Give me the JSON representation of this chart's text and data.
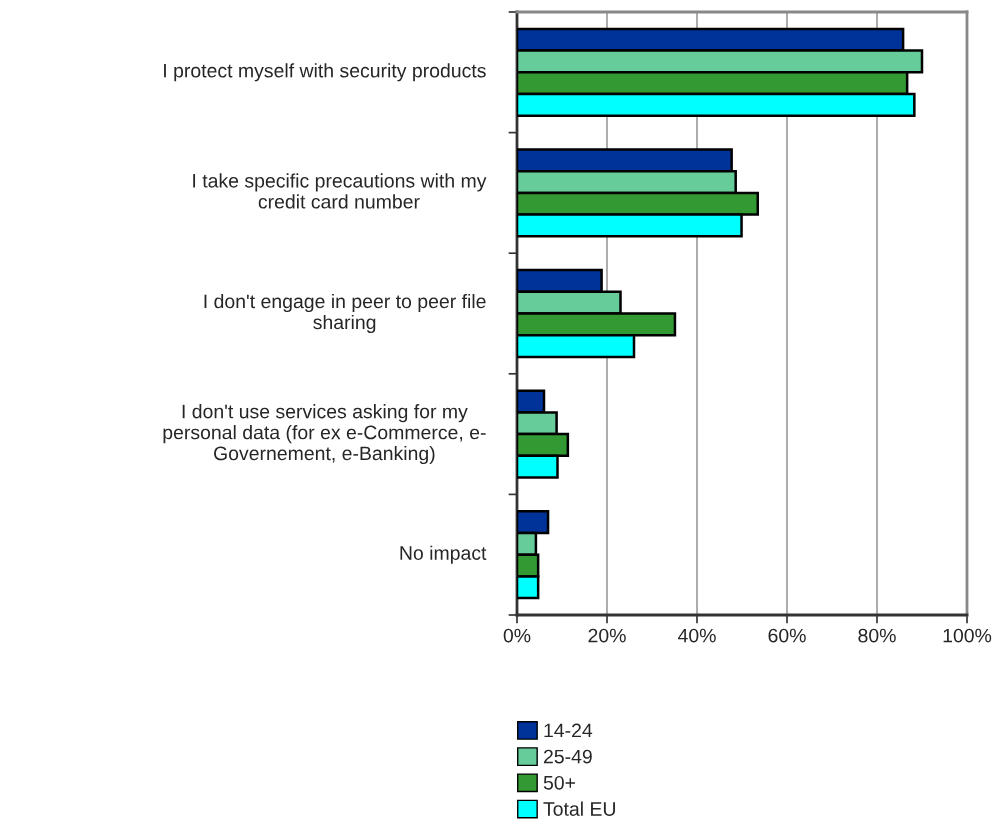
{
  "chart_data": {
    "type": "bar",
    "orientation": "horizontal",
    "categories": [
      "I protect myself with security products",
      "I take specific precautions with my\ncredit card number",
      "I don't engage in peer to peer file\nsharing",
      "I don't use services asking for my\npersonal data (for ex e-Commerce, e-\nGovernement, e-Banking)",
      "No impact"
    ],
    "series": [
      {
        "name": "14-24",
        "color": "#003399",
        "values": [
          85.8,
          47.7,
          18.8,
          6.0,
          6.9
        ]
      },
      {
        "name": "25-49",
        "color": "#66cc99",
        "values": [
          90.0,
          48.6,
          23.0,
          8.8,
          4.2
        ]
      },
      {
        "name": "50+",
        "color": "#339933",
        "values": [
          86.7,
          53.5,
          35.1,
          11.3,
          4.7
        ]
      },
      {
        "name": "Total EU",
        "color": "#00ffff",
        "values": [
          88.3,
          49.9,
          26.0,
          9.0,
          4.7
        ]
      }
    ],
    "xlim": [
      0,
      100
    ],
    "xticks": [
      {
        "value": 0,
        "label": "0%"
      },
      {
        "value": 20,
        "label": "20%"
      },
      {
        "value": 40,
        "label": "40%"
      },
      {
        "value": 60,
        "label": "60%"
      },
      {
        "value": 80,
        "label": "80%"
      },
      {
        "value": 100,
        "label": "100%"
      }
    ],
    "grid": "x",
    "legend": "bottom"
  }
}
